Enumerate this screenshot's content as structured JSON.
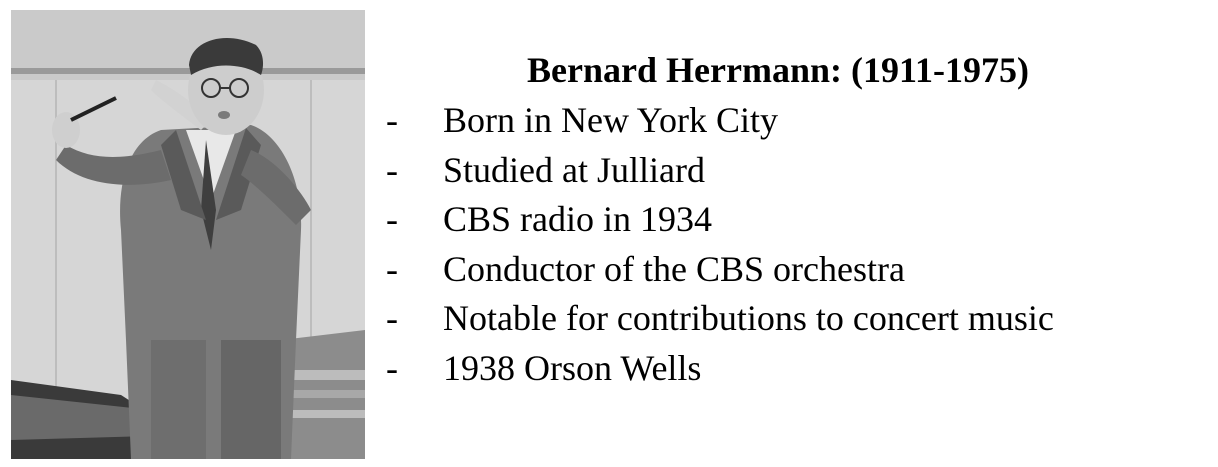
{
  "photo": {
    "icon": "portrait-photo-icon",
    "description_colors": {
      "background": "#c9c9c9",
      "wall": "#d8d8d8",
      "suit": "#7a7a7a",
      "suit_dark": "#4a4a4a",
      "skin": "#cfcfcf"
    }
  },
  "slide": {
    "title": "Bernard Herrmann: (1911-1975)",
    "bullet_marker": "-",
    "bullets": [
      {
        "text": "Born in New York City"
      },
      {
        "text": "Studied at Julliard"
      },
      {
        "text": "CBS radio in 1934"
      },
      {
        "text": "Conductor of the CBS orchestra"
      },
      {
        "text": "Notable for contributions to concert music"
      },
      {
        "text": "1938 Orson Wells"
      }
    ]
  }
}
